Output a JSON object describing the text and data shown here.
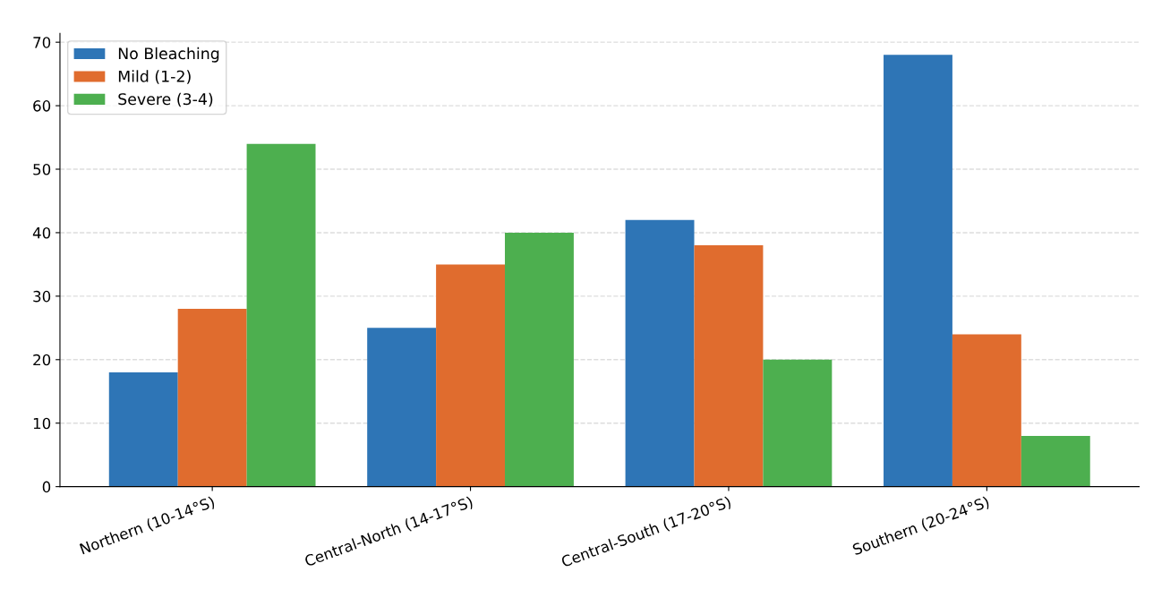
{
  "chart_data": {
    "type": "bar",
    "categories": [
      "Northern (10-14°S)",
      "Central-North (14-17°S)",
      "Central-South (17-20°S)",
      "Southern (20-24°S)"
    ],
    "series": [
      {
        "name": "No Bleaching",
        "color": "#2e75b6",
        "values": [
          18,
          25,
          42,
          68
        ]
      },
      {
        "name": "Mild (1-2)",
        "color": "#e06c2e",
        "values": [
          28,
          35,
          38,
          24
        ]
      },
      {
        "name": "Severe (3-4)",
        "color": "#4daf4f",
        "values": [
          54,
          40,
          20,
          8
        ]
      }
    ],
    "ylim": [
      0,
      71.4
    ],
    "yticks": [
      0,
      10,
      20,
      30,
      40,
      50,
      60,
      70
    ],
    "grid": "y",
    "legend": "top left"
  }
}
